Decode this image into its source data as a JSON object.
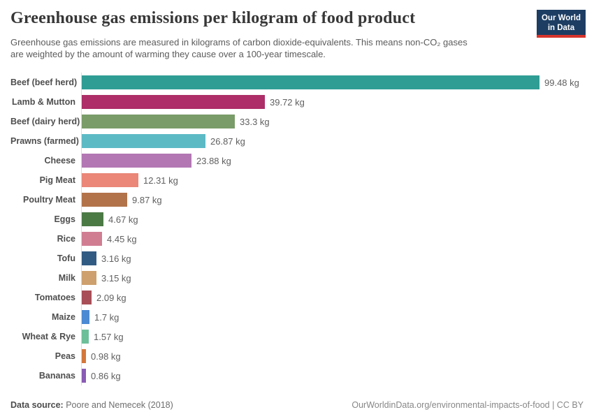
{
  "header": {
    "title": "Greenhouse gas emissions per kilogram of food product",
    "subtitle_line1": "Greenhouse gas emissions are measured in kilograms of carbon dioxide-equivalents. This means non-CO₂ gases",
    "subtitle_line2": "are weighted by the amount of warming they cause over a 100-year timescale.",
    "logo": {
      "line1": "Our World",
      "line2": "in Data",
      "bg_color": "#1d3d63",
      "stripe_color": "#d6342c"
    }
  },
  "chart_data": {
    "type": "bar",
    "orientation": "horizontal",
    "unit": "kg",
    "title": "Greenhouse gas emissions per kilogram of food product",
    "xlim": [
      0,
      100
    ],
    "grid": false,
    "legend": false,
    "categories": [
      "Beef (beef herd)",
      "Lamb & Mutton",
      "Beef (dairy herd)",
      "Prawns (farmed)",
      "Cheese",
      "Pig Meat",
      "Poultry Meat",
      "Eggs",
      "Rice",
      "Tofu",
      "Milk",
      "Tomatoes",
      "Maize",
      "Wheat & Rye",
      "Peas",
      "Bananas"
    ],
    "values": [
      99.48,
      39.72,
      33.3,
      26.87,
      23.88,
      12.31,
      9.87,
      4.67,
      4.45,
      3.16,
      3.15,
      2.09,
      1.7,
      1.57,
      0.98,
      0.86
    ],
    "value_labels": [
      "99.48 kg",
      "39.72 kg",
      "33.3 kg",
      "26.87 kg",
      "23.88 kg",
      "12.31 kg",
      "9.87 kg",
      "4.67 kg",
      "4.45 kg",
      "3.16 kg",
      "3.15 kg",
      "2.09 kg",
      "1.7 kg",
      "1.57 kg",
      "0.98 kg",
      "0.86 kg"
    ],
    "colors": [
      "#2f9d94",
      "#ad2e68",
      "#7a9c68",
      "#5cbac5",
      "#b377b3",
      "#ea8778",
      "#b3734a",
      "#4c7a45",
      "#d07d92",
      "#315b83",
      "#cda06d",
      "#a84e57",
      "#4c8ad3",
      "#6dbf9a",
      "#d3773b",
      "#8a5cb4"
    ]
  },
  "footer": {
    "datasource_label": "Data source:",
    "datasource_value": "Poore and Nemecek (2018)",
    "url_text": "OurWorldinData.org/environmental-impacts-of-food | CC BY"
  }
}
